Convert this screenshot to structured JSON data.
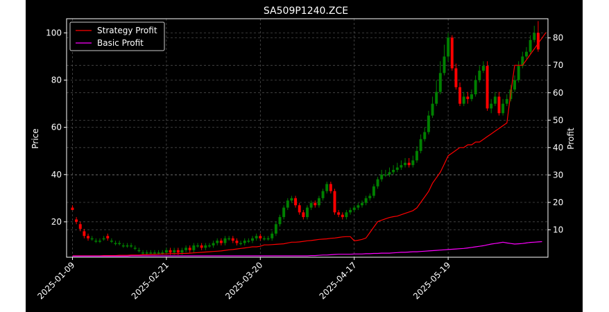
{
  "chart_data": {
    "type": "candlestick+line",
    "title": "SA509P1240.ZCE",
    "xlabel": "",
    "ylabel_left": "Price",
    "ylabel_right": "Profit",
    "ylim_left": [
      5,
      106
    ],
    "ylim_right": [
      0,
      87
    ],
    "yticks_left": [
      20,
      40,
      60,
      80,
      100
    ],
    "yticks_right": [
      10,
      20,
      30,
      40,
      50,
      60,
      70,
      80
    ],
    "x_tick_labels": [
      "2025-01-09",
      "2025-02-21",
      "2025-03-20",
      "2025-04-17",
      "2025-05-19"
    ],
    "x_tick_index": [
      0,
      24,
      48,
      72,
      96
    ],
    "grid": true,
    "legend_position": "upper-left",
    "colors": {
      "background": "#000000",
      "up": "#008000",
      "down": "#ff0000",
      "strategy": "#ff0000",
      "basic": "#ff00ff",
      "text": "#ffffff"
    },
    "series": [
      {
        "name": "Strategy Profit",
        "axis": "right",
        "values": [
          0.5,
          0.5,
          0.5,
          0.5,
          0.5,
          0.5,
          0.5,
          0.5,
          0.6,
          0.6,
          0.6,
          0.6,
          0.7,
          0.7,
          0.7,
          0.8,
          0.8,
          0.8,
          0.9,
          0.9,
          1,
          1,
          1.1,
          1.2,
          1.2,
          1.3,
          1.3,
          1.3,
          1.4,
          1.4,
          1.5,
          1.6,
          1.7,
          1.8,
          1.9,
          2,
          2.1,
          2.2,
          2.3,
          2.5,
          2.7,
          2.8,
          3,
          3.2,
          3.4,
          3.6,
          3.8,
          3.8,
          4,
          4.5,
          4.5,
          4.6,
          4.7,
          4.8,
          4.9,
          5.2,
          5.5,
          5.5,
          5.6,
          5.8,
          6,
          6.1,
          6.3,
          6.5,
          6.6,
          6.7,
          6.9,
          7,
          7.2,
          7.4,
          7.5,
          7.5,
          6,
          6.2,
          6.5,
          7,
          9,
          11,
          13,
          13.5,
          14,
          14.5,
          14.8,
          15,
          15.5,
          16,
          16.5,
          17,
          18,
          20,
          22,
          24,
          27,
          29,
          31,
          34,
          37,
          38,
          39,
          40,
          40,
          41,
          41,
          42,
          42,
          43,
          44,
          45,
          46,
          47,
          48,
          49,
          60,
          70,
          70,
          70,
          72,
          74,
          76,
          78,
          80,
          82
        ]
      },
      {
        "name": "Basic Profit",
        "axis": "right",
        "values": [
          0.4,
          0.4,
          0.4,
          0.4,
          0.4,
          0.4,
          0.4,
          0.4,
          0.4,
          0.4,
          0.4,
          0.4,
          0.4,
          0.4,
          0.4,
          0.5,
          0.5,
          0.5,
          0.5,
          0.5,
          0.5,
          0.5,
          0.5,
          0.5,
          0.5,
          0.5,
          0.5,
          0.5,
          0.5,
          0.5,
          0.5,
          0.5,
          0.5,
          0.5,
          0.5,
          0.5,
          0.5,
          0.5,
          0.5,
          0.5,
          0.5,
          0.5,
          0.5,
          0.5,
          0.5,
          0.5,
          0.5,
          0.5,
          0.5,
          0.5,
          0.5,
          0.5,
          0.5,
          0.5,
          0.5,
          0.5,
          0.5,
          0.5,
          0.5,
          0.5,
          0.5,
          0.6,
          0.6,
          0.7,
          0.8,
          0.8,
          0.9,
          1,
          1.1,
          1.1,
          1.1,
          1.1,
          1.2,
          1.2,
          1.2,
          1.3,
          1.3,
          1.4,
          1.4,
          1.5,
          1.5,
          1.5,
          1.6,
          1.7,
          1.8,
          1.8,
          1.9,
          2,
          2,
          2.1,
          2.2,
          2.3,
          2.4,
          2.5,
          2.6,
          2.7,
          2.8,
          2.9,
          3,
          3.1,
          3.2,
          3.4,
          3.6,
          3.8,
          4,
          4.2,
          4.5,
          4.8,
          5,
          5.2,
          5.5,
          5.2,
          5,
          4.8,
          4.9,
          5,
          5.2,
          5.4,
          5.5,
          5.6,
          5.7
        ]
      }
    ],
    "candles": {
      "open": [
        26,
        21,
        19,
        16,
        14,
        13,
        12,
        12,
        13,
        14,
        12,
        11,
        11,
        10,
        10,
        10,
        9,
        8,
        7,
        7,
        7,
        7,
        7,
        7,
        7,
        8,
        7,
        8,
        7,
        8,
        9,
        8,
        10,
        10,
        9,
        10,
        10,
        11,
        12,
        11,
        13,
        13,
        12,
        11,
        11,
        12,
        12,
        13,
        14,
        13,
        13,
        13,
        15,
        19,
        22,
        26,
        29,
        30,
        27,
        24,
        22,
        26,
        28,
        27,
        30,
        33,
        36,
        33,
        24,
        23,
        22,
        24,
        25,
        26,
        27,
        28,
        30,
        31,
        35,
        38,
        40,
        40,
        41,
        42,
        43,
        44,
        45,
        44,
        46,
        50,
        55,
        58,
        65,
        70,
        75,
        83,
        90,
        98,
        85,
        77,
        70,
        73,
        72,
        74,
        80,
        84,
        86,
        68,
        70,
        73,
        66,
        70,
        72,
        76,
        80,
        86,
        90,
        92,
        97,
        100
      ],
      "close": [
        25,
        20,
        17,
        14,
        13,
        13,
        12,
        12,
        13,
        13,
        12,
        11,
        11,
        10,
        10,
        10,
        9,
        8,
        7,
        7,
        7,
        7,
        7,
        7,
        8,
        7,
        8,
        7,
        8,
        9,
        8,
        10,
        10,
        9,
        10,
        10,
        11,
        12,
        11,
        13,
        13,
        12,
        11,
        11,
        12,
        12,
        13,
        14,
        13,
        13,
        13,
        15,
        19,
        22,
        26,
        29,
        30,
        27,
        24,
        22,
        26,
        28,
        27,
        30,
        33,
        36,
        33,
        24,
        23,
        22,
        24,
        25,
        26,
        27,
        28,
        30,
        31,
        35,
        38,
        40,
        40,
        41,
        42,
        43,
        44,
        45,
        44,
        46,
        50,
        55,
        58,
        65,
        70,
        75,
        83,
        90,
        98,
        85,
        77,
        70,
        73,
        72,
        74,
        80,
        84,
        86,
        68,
        70,
        73,
        66,
        70,
        72,
        76,
        80,
        86,
        90,
        92,
        97,
        100,
        93
      ],
      "high": [
        27,
        22,
        20,
        17,
        15,
        14,
        13,
        13,
        14,
        15,
        13,
        12,
        12,
        11,
        11,
        11,
        10,
        9,
        8,
        8,
        8,
        8,
        8,
        8,
        9,
        9,
        9,
        9,
        9,
        10,
        10,
        11,
        11,
        11,
        11,
        11,
        12,
        13,
        13,
        14,
        14,
        14,
        13,
        12,
        13,
        13,
        14,
        15,
        15,
        14,
        14,
        16,
        20,
        23,
        27,
        30,
        31,
        31,
        28,
        25,
        27,
        29,
        29,
        31,
        34,
        37,
        37,
        34,
        25,
        24,
        25,
        26,
        27,
        28,
        29,
        31,
        32,
        36,
        39,
        42,
        42,
        43,
        44,
        45,
        46,
        47,
        47,
        48,
        52,
        57,
        60,
        67,
        73,
        80,
        88,
        95,
        100,
        99,
        87,
        79,
        75,
        75,
        76,
        82,
        86,
        88,
        88,
        72,
        75,
        75,
        72,
        74,
        78,
        82,
        88,
        92,
        94,
        99,
        103,
        105
      ],
      "low": [
        25,
        19,
        16,
        13,
        12,
        12,
        11,
        11,
        12,
        12,
        11,
        10,
        10,
        9,
        9,
        9,
        8,
        7,
        6,
        6,
        6,
        6,
        6,
        6,
        6,
        6,
        6,
        6,
        6,
        7,
        7,
        7,
        9,
        8,
        8,
        9,
        9,
        10,
        10,
        10,
        12,
        11,
        10,
        10,
        10,
        11,
        11,
        12,
        12,
        12,
        12,
        12,
        14,
        18,
        21,
        25,
        28,
        26,
        23,
        21,
        21,
        25,
        26,
        26,
        29,
        32,
        32,
        23,
        22,
        21,
        21,
        23,
        24,
        25,
        26,
        27,
        29,
        30,
        34,
        37,
        39,
        39,
        40,
        41,
        42,
        43,
        43,
        43,
        45,
        49,
        54,
        57,
        64,
        69,
        74,
        82,
        88,
        84,
        76,
        69,
        69,
        70,
        71,
        73,
        79,
        83,
        67,
        66,
        69,
        65,
        65,
        69,
        71,
        75,
        79,
        85,
        89,
        91,
        96,
        92
      ]
    }
  }
}
